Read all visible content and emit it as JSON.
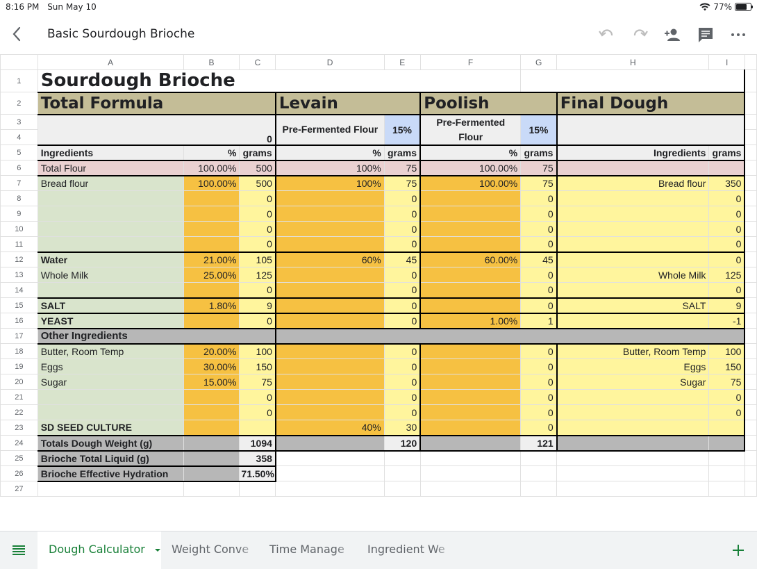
{
  "status": {
    "time": "8:16 PM",
    "date": "Sun May 10",
    "battery": "77%"
  },
  "toolbar": {
    "title": "Basic Sourdough Brioche"
  },
  "columns": [
    "A",
    "B",
    "C",
    "D",
    "E",
    "F",
    "G",
    "H",
    "I"
  ],
  "rows": [
    "1",
    "2",
    "3",
    "4",
    "5",
    "6",
    "7",
    "8",
    "9",
    "10",
    "11",
    "12",
    "13",
    "14",
    "15",
    "16",
    "17",
    "18",
    "19",
    "20",
    "21",
    "22",
    "23",
    "24",
    "25",
    "26",
    "27"
  ],
  "sheet": {
    "title": "Sourdough Brioche",
    "sections": {
      "total": "Total Formula",
      "levain": "Levain",
      "poolish": "Poolish",
      "final": "Final Dough"
    },
    "prefermented_levain": "Pre-Fermented Flour",
    "prefermented_poolish": "Pre-Fermented Flour",
    "levain_pct": "15%",
    "poolish_pct": "15%",
    "total_prefermented": "0",
    "headers": {
      "ingredients": "Ingredients",
      "pct": "%",
      "grams": "grams",
      "final_ingredients": "Ingredients",
      "final_grams": "grams"
    },
    "r6": [
      "Total Flour",
      "100.00%",
      "500",
      "100%",
      "75",
      "100.00%",
      "75",
      "",
      ""
    ],
    "r7": [
      "Bread flour",
      "100.00%",
      "500",
      "100%",
      "75",
      "100.00%",
      "75",
      "Bread flour",
      "350"
    ],
    "r8": [
      "",
      "",
      "0",
      "",
      "0",
      "",
      "0",
      "",
      "0"
    ],
    "r9": [
      "",
      "",
      "0",
      "",
      "0",
      "",
      "0",
      "",
      "0"
    ],
    "r10": [
      "",
      "",
      "0",
      "",
      "0",
      "",
      "0",
      "",
      "0"
    ],
    "r11": [
      "",
      "",
      "0",
      "",
      "0",
      "",
      "0",
      "",
      "0"
    ],
    "r12": [
      "Water",
      "21.00%",
      "105",
      "60%",
      "45",
      "60.00%",
      "45",
      "",
      "0"
    ],
    "r13": [
      "Whole Milk",
      "25.00%",
      "125",
      "",
      "0",
      "",
      "0",
      "Whole Milk",
      "125"
    ],
    "r14": [
      "",
      "",
      "0",
      "",
      "0",
      "",
      "0",
      "",
      "0"
    ],
    "r15": [
      "SALT",
      "1.80%",
      "9",
      "",
      "0",
      "",
      "0",
      "SALT",
      "9"
    ],
    "r16": [
      "YEAST",
      "",
      "0",
      "",
      "0",
      "1.00%",
      "1",
      "",
      "-1"
    ],
    "r17": "Other Ingredients",
    "r18": [
      "Butter, Room Temp",
      "20.00%",
      "100",
      "",
      "0",
      "",
      "0",
      "Butter, Room Temp",
      "100"
    ],
    "r19": [
      "Eggs",
      "30.00%",
      "150",
      "",
      "0",
      "",
      "0",
      "Eggs",
      "150"
    ],
    "r20": [
      "Sugar",
      "15.00%",
      "75",
      "",
      "0",
      "",
      "0",
      "Sugar",
      "75"
    ],
    "r21": [
      "",
      "",
      "0",
      "",
      "0",
      "",
      "0",
      "",
      "0"
    ],
    "r22": [
      "",
      "",
      "0",
      "",
      "0",
      "",
      "0",
      "",
      "0"
    ],
    "r23": [
      "SD SEED CULTURE",
      "",
      "",
      "40%",
      "30",
      "",
      "0",
      "",
      ""
    ],
    "r24": [
      "Totals Dough Weight (g)",
      "",
      "1094",
      "",
      "120",
      "",
      "121",
      "",
      ""
    ],
    "r25": [
      "Brioche Total Liquid (g)",
      "",
      "358"
    ],
    "r26": [
      "Brioche Effective Hydration",
      "",
      "71.50%"
    ]
  },
  "tabs": [
    "Dough Calculator",
    "Weight Conve",
    "Time Manage",
    "Ingredient We"
  ],
  "icons": {
    "back": "back-arrow-icon",
    "undo": "undo-icon",
    "redo": "redo-icon",
    "share": "add-person-icon",
    "comment": "comment-icon",
    "more": "more-icon",
    "menu": "sheets-menu-icon",
    "add": "add-sheet-icon"
  }
}
